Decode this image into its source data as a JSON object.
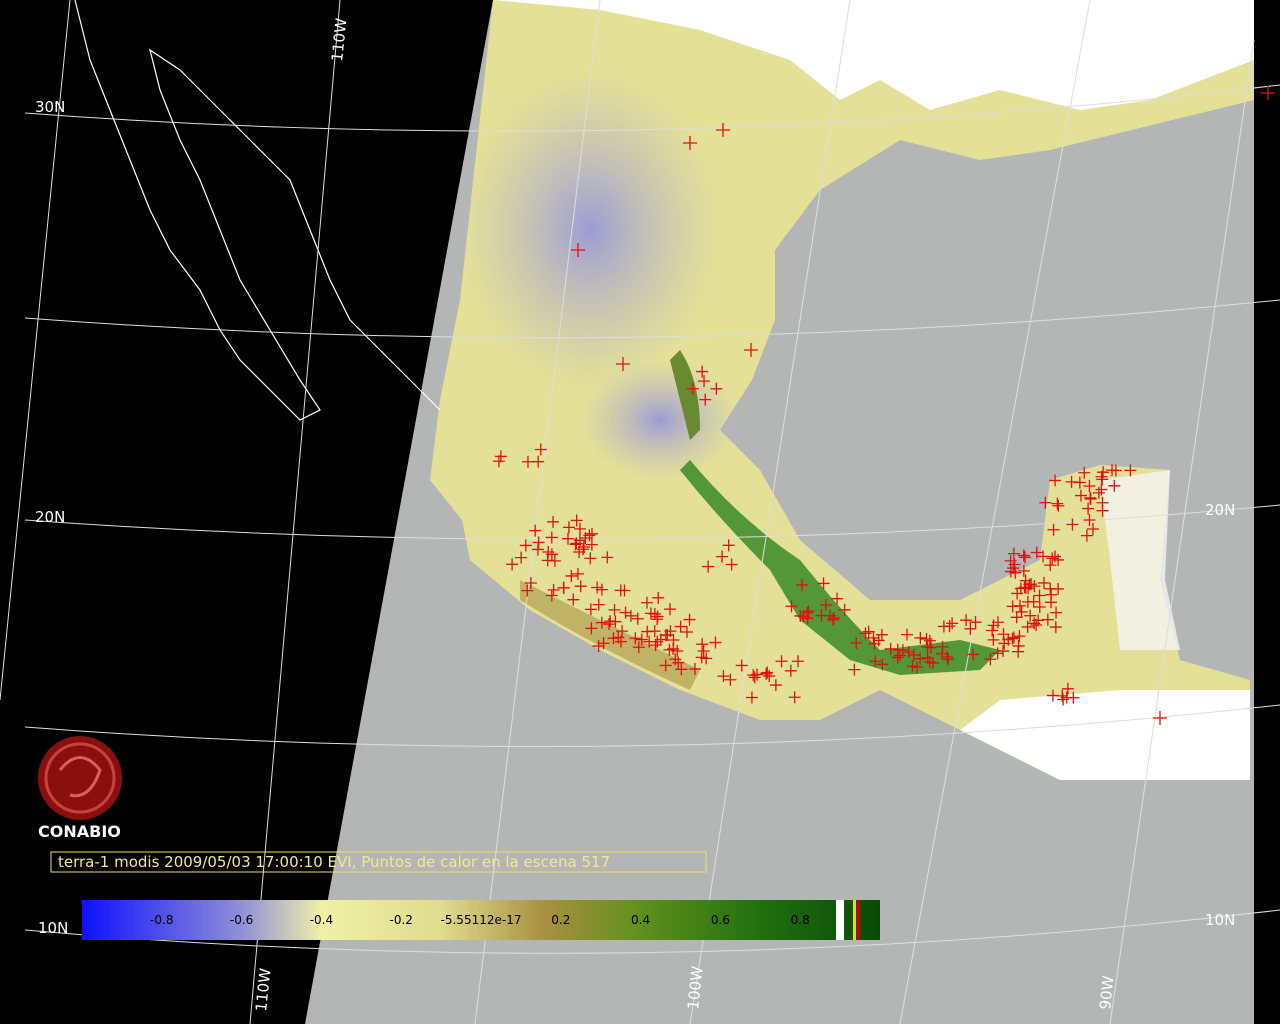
{
  "map": {
    "grid_labels": {
      "lat_30": "30N",
      "lat_20_left": "20N",
      "lat_20_right": "20N",
      "lat_10_left": "10N",
      "lat_10_right": "10N",
      "lon_110_top": "110W",
      "lon_110_bottom": "110W",
      "lon_100": "100W",
      "lon_90": "90W"
    },
    "logo": "CONABIO",
    "caption": "terra-1 modis 2009/05/03 17:00:10 EVI, Puntos de calor en la escena 517",
    "colorbar": {
      "range": [
        -1,
        1
      ],
      "ticks": [
        {
          "value": -0.8,
          "label": "-0.8"
        },
        {
          "value": -0.6,
          "label": "-0.6"
        },
        {
          "value": -0.4,
          "label": "-0.4"
        },
        {
          "value": -0.2,
          "label": "-0.2"
        },
        {
          "value": 0,
          "label": "-5.55112e-17"
        },
        {
          "value": 0.2,
          "label": "0.2"
        },
        {
          "value": 0.4,
          "label": "0.4"
        },
        {
          "value": 0.6,
          "label": "0.6"
        },
        {
          "value": 0.8,
          "label": "0.8"
        }
      ]
    }
  }
}
